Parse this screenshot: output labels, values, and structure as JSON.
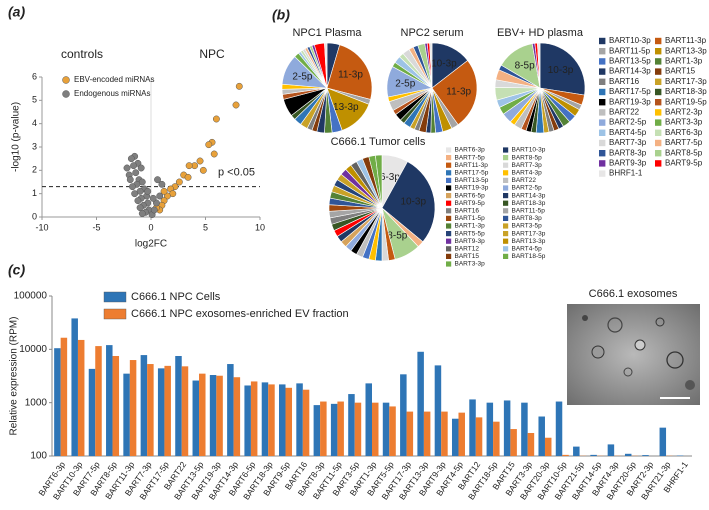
{
  "chart_data": [
    {
      "type": "scatter",
      "panel": "(a)",
      "xlabel": "log2FC",
      "ylabel": "-log10 (p-value)",
      "xlim": [
        -10,
        10
      ],
      "ylim": [
        0,
        6
      ],
      "xticks": [
        -10,
        -5,
        0,
        5,
        10
      ],
      "yticks": [
        0,
        1,
        2,
        3,
        4,
        5,
        6
      ],
      "group_labels": [
        "controls",
        "NPC"
      ],
      "threshold": 1.3,
      "threshold_label": "p <0.05",
      "series": [
        {
          "name": "EBV-encoded miRNAs",
          "color": "#e8a13a",
          "x": [
            8.1,
            7.8,
            6.0,
            5.6,
            5.3,
            5.8,
            4.5,
            4.0,
            4.8,
            3.5,
            3.0,
            2.6,
            2.2,
            1.8,
            2.0,
            1.5,
            1.2,
            1.0,
            0.8,
            3.4,
            0.5,
            1.2
          ],
          "y": [
            5.6,
            4.8,
            4.2,
            3.2,
            3.1,
            2.7,
            2.4,
            2.2,
            2.0,
            2.2,
            1.8,
            1.5,
            1.3,
            1.2,
            1.0,
            0.9,
            0.7,
            0.5,
            0.3,
            1.7,
            0.4,
            1.1
          ]
        },
        {
          "name": "Endogenous miRNAs",
          "color": "#7f7f7f",
          "x": [
            -1.5,
            -1.8,
            -1.2,
            -1.6,
            -0.9,
            -1.4,
            -2.0,
            -1.1,
            -0.8,
            -1.3,
            -1.7,
            -0.6,
            -1.0,
            -1.5,
            -0.4,
            -0.9,
            -1.2,
            -0.3,
            -0.7,
            -1.0,
            -0.2,
            -0.5,
            0.1,
            -0.8,
            0.3,
            0.5,
            0.8,
            1.0,
            0.6,
            -2.2,
            -1.9,
            -0.3,
            0.2
          ],
          "y": [
            2.6,
            2.5,
            2.3,
            2.2,
            2.1,
            1.9,
            1.8,
            1.6,
            1.5,
            1.4,
            1.3,
            1.2,
            1.1,
            1.0,
            0.9,
            0.8,
            0.7,
            0.6,
            0.5,
            0.4,
            0.3,
            0.2,
            0.1,
            0.15,
            0.3,
            0.6,
            0.9,
            1.4,
            1.6,
            2.1,
            1.6,
            1.1,
            0.8
          ]
        }
      ]
    },
    {
      "type": "pie",
      "panel": "(b)",
      "legend": {
        "categories": [
          "BART10-3p",
          "BART11-3p",
          "BART11-5p",
          "BART13-3p",
          "BART13-5p",
          "BART1-3p",
          "BART14-3p",
          "BART15",
          "BART16",
          "BART17-3p",
          "BART17-5p",
          "BART18-3p",
          "BART19-3p",
          "BART19-5p",
          "BART22",
          "BART2-3p",
          "BART2-5p",
          "BART3-3p",
          "BART4-5p",
          "BART6-3p",
          "BART7-3p",
          "BART7-5p",
          "BART8-3p",
          "BART8-5p",
          "BART9-3p",
          "BART9-5p",
          "BHRF1-1"
        ],
        "colors": [
          "#1f3864",
          "#c55a11",
          "#a5a5a5",
          "#bf9000",
          "#4472c4",
          "#548235",
          "#203864",
          "#843c0c",
          "#7f7f7f",
          "#c9a227",
          "#2e75b6",
          "#375623",
          "#000000",
          "#b4531d",
          "#bfbfbf",
          "#ffc000",
          "#8faadc",
          "#70ad47",
          "#9dc3e6",
          "#c5e0b4",
          "#d9d9d9",
          "#f4b183",
          "#2f5597",
          "#a9d18e",
          "#7030a0",
          "#ff0000",
          "#e7e6e6"
        ]
      },
      "pies": [
        {
          "title": "NPC1 Plasma",
          "values": [
            5,
            27,
            2,
            15,
            4,
            3,
            3,
            2,
            2,
            3,
            3,
            2,
            7,
            2,
            2,
            2,
            12,
            2,
            1,
            1,
            1,
            1,
            1,
            1,
            1,
            4,
            1
          ],
          "slice_labels": [
            null,
            "11-3p",
            null,
            "13-3p",
            null,
            null,
            null,
            null,
            null,
            null,
            null,
            null,
            null,
            null,
            null,
            null,
            "2-5p",
            null,
            null,
            null,
            null,
            null,
            null,
            null,
            null,
            null,
            null
          ]
        },
        {
          "title": "NPC2 serum",
          "values": [
            17,
            30,
            3,
            4,
            3,
            2,
            2,
            3,
            2,
            2,
            3,
            2,
            3,
            2,
            4,
            2,
            13,
            2,
            3,
            2,
            3,
            2,
            2,
            3,
            1,
            1,
            1
          ],
          "slice_labels": [
            "10-3p",
            "11-3p",
            null,
            null,
            null,
            null,
            null,
            null,
            null,
            null,
            null,
            null,
            null,
            null,
            null,
            null,
            "2-5p",
            null,
            null,
            null,
            null,
            null,
            null,
            null,
            null,
            null,
            null
          ]
        },
        {
          "title": "EBV+ HD plasma",
          "values": [
            30,
            4,
            2,
            3,
            3,
            3,
            2,
            2,
            2,
            2,
            3,
            2,
            2,
            2,
            3,
            2,
            4,
            3,
            3,
            5,
            3,
            4,
            2,
            15,
            1,
            1,
            1
          ],
          "slice_labels": [
            "10-3p",
            null,
            null,
            null,
            null,
            null,
            null,
            null,
            null,
            null,
            null,
            null,
            null,
            null,
            null,
            null,
            null,
            null,
            null,
            null,
            null,
            null,
            null,
            "8-5p",
            null,
            null,
            null
          ]
        }
      ]
    },
    {
      "type": "pie",
      "title": "C666.1 Tumor cells",
      "categories": [
        "BART6-3p",
        "BART10-3p",
        "BART7-5p",
        "BART8-5p",
        "BART11-3p",
        "BART7-3p",
        "BART17-5p",
        "BART4-3p",
        "BART13-5p",
        "BART22",
        "BART19-3p",
        "BART2-5p",
        "BART6-5p",
        "BART14-3p",
        "BART9-5p",
        "BART18-3p",
        "BART16",
        "BART11-5p",
        "BART1-5p",
        "BART8-3p",
        "BART1-3p",
        "BART3-5p",
        "BART5-5p",
        "BART17-3p",
        "BART9-3p",
        "BART13-3p",
        "BART12",
        "BART4-5p",
        "BART15",
        "BART18-5p",
        "BART3-3p"
      ],
      "colors": [
        "#e7e6e6",
        "#1f3864",
        "#f4b183",
        "#a9d18e",
        "#c55a11",
        "#d9d9d9",
        "#2e75b6",
        "#ffc000",
        "#4472c4",
        "#bfbfbf",
        "#000000",
        "#8faadc",
        "#d6a35c",
        "#203864",
        "#ff0000",
        "#375623",
        "#7f7f7f",
        "#a5a5a5",
        "#9e480e",
        "#2f5597",
        "#548235",
        "#c9a227",
        "#264478",
        "#c9a227",
        "#7030a0",
        "#bf9000",
        "#636363",
        "#9dc3e6",
        "#843c0c",
        "#70ad47",
        "#70ad47"
      ],
      "values": [
        8,
        28,
        2,
        8,
        2,
        2,
        2,
        2,
        2,
        2,
        2,
        2,
        2,
        2,
        2,
        2,
        2,
        2,
        2,
        2,
        2,
        2,
        2,
        2,
        2,
        2,
        2,
        2,
        2,
        2,
        2
      ],
      "slice_labels": [
        "6-3p",
        "10-3p",
        null,
        "8-5p",
        null,
        null,
        null,
        null,
        null,
        null,
        null,
        null,
        null,
        null,
        null,
        null,
        null,
        null,
        null,
        null,
        null,
        null,
        null,
        null,
        null,
        null,
        null,
        null,
        null,
        null,
        null
      ]
    },
    {
      "type": "bar",
      "panel": "(c)",
      "ylabel": "Relative expression (RPM)",
      "ylog": true,
      "ylim": [
        100,
        100000
      ],
      "yticks": [
        100,
        1000,
        10000,
        100000
      ],
      "inset_title": "C666.1 exosomes",
      "categories": [
        "BART6-3p",
        "BART10-3p",
        "BART7-5p",
        "BART8-5p",
        "BART11-3p",
        "BART7-3p",
        "BART17-5p",
        "BART22",
        "BART13-5p",
        "BART19-3p",
        "BART14-3p",
        "BART6-5p",
        "BART18-3p",
        "BART9-5p",
        "BART16",
        "BART8-3p",
        "BART11-5p",
        "BART3-5p",
        "BART1-3p",
        "BART5-5p",
        "BART17-3p",
        "BART13-3p",
        "BART9-3p",
        "BART4-5p",
        "BART12",
        "BART18-5p",
        "BART15",
        "BART3-3p",
        "BART20-3p",
        "BART10-5p",
        "BART21-5p",
        "BART14-5p",
        "BART4-3p",
        "BART20-5p",
        "BART2-3p",
        "BART21-3p",
        "BHRF1-1"
      ],
      "series": [
        {
          "name": "C666.1 NPC Cells",
          "color": "#2e75b6",
          "values": [
            10500,
            38000,
            4300,
            12000,
            3500,
            7800,
            4400,
            7500,
            2600,
            3300,
            5300,
            2100,
            2400,
            2200,
            2300,
            900,
            950,
            1450,
            2300,
            1000,
            3400,
            9000,
            5000,
            500,
            1150,
            1000,
            1100,
            1000,
            550,
            1050,
            150,
            105,
            165,
            110,
            104,
            340,
            102
          ]
        },
        {
          "name": "C666.1 NPC exosomes-enriched EV fraction",
          "color": "#ed7d31",
          "values": [
            16500,
            15000,
            11500,
            7500,
            6300,
            5300,
            4900,
            4800,
            3500,
            3200,
            3000,
            2500,
            2200,
            1900,
            1750,
            1050,
            1050,
            1000,
            1000,
            850,
            680,
            680,
            680,
            650,
            530,
            440,
            320,
            270,
            220,
            105,
            101,
            101,
            101,
            101,
            100,
            101,
            100
          ]
        }
      ]
    }
  ]
}
